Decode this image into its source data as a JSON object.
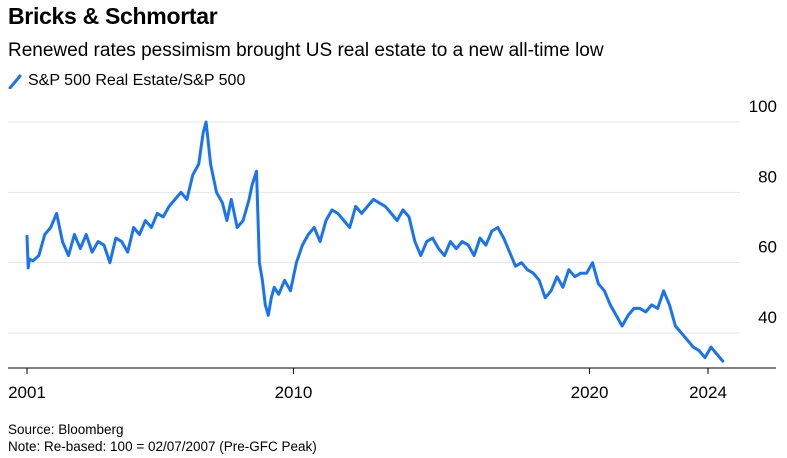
{
  "title": "Bricks & Schmortar",
  "subtitle": "Renewed rates pessimism brought US real estate to a new all-time low",
  "source": "Source: Bloomberg",
  "note": "Note: Re-based: 100 = 02/07/2007 (Pre-GFC Peak)",
  "colors": {
    "line": "#1a73f0",
    "grid": "#e6e6e6",
    "axis": "#000000"
  },
  "chart_data": {
    "type": "line",
    "title": "Bricks & Schmortar",
    "subtitle": "Renewed rates pessimism brought US real estate to a new all-time low",
    "legend_position": "top-left",
    "grid": true,
    "y_axis_side": "right",
    "ylim": [
      28,
      100
    ],
    "xlim": [
      2001,
      2024.6
    ],
    "y_ticks": [
      100,
      80,
      60,
      40
    ],
    "x_ticks": [
      2001,
      2010,
      2020,
      2024
    ],
    "series": [
      {
        "name": "S&P 500 Real Estate/S&P 500",
        "x": [
          2001.0,
          2001.04,
          2001.08,
          2001.2,
          2001.4,
          2001.6,
          2001.8,
          2002.0,
          2002.2,
          2002.4,
          2002.6,
          2002.8,
          2003.0,
          2003.2,
          2003.4,
          2003.6,
          2003.8,
          2004.0,
          2004.2,
          2004.4,
          2004.6,
          2004.8,
          2005.0,
          2005.2,
          2005.4,
          2005.6,
          2005.8,
          2006.0,
          2006.2,
          2006.4,
          2006.6,
          2006.8,
          2006.95,
          2007.05,
          2007.2,
          2007.4,
          2007.6,
          2007.75,
          2007.9,
          2008.1,
          2008.3,
          2008.5,
          2008.6,
          2008.75,
          2008.85,
          2008.95,
          2009.05,
          2009.15,
          2009.25,
          2009.35,
          2009.5,
          2009.7,
          2009.9,
          2010.1,
          2010.3,
          2010.5,
          2010.7,
          2010.9,
          2011.1,
          2011.3,
          2011.5,
          2011.7,
          2011.9,
          2012.1,
          2012.3,
          2012.5,
          2012.7,
          2012.9,
          2013.1,
          2013.3,
          2013.5,
          2013.7,
          2013.9,
          2014.1,
          2014.3,
          2014.5,
          2014.7,
          2014.9,
          2015.1,
          2015.3,
          2015.5,
          2015.7,
          2015.9,
          2016.1,
          2016.3,
          2016.5,
          2016.7,
          2016.9,
          2017.1,
          2017.3,
          2017.5,
          2017.7,
          2017.9,
          2018.1,
          2018.3,
          2018.5,
          2018.7,
          2018.9,
          2019.1,
          2019.3,
          2019.5,
          2019.7,
          2019.9,
          2020.1,
          2020.3,
          2020.5,
          2020.7,
          2020.9,
          2021.1,
          2021.3,
          2021.5,
          2021.7,
          2021.9,
          2022.1,
          2022.3,
          2022.5,
          2022.7,
          2022.9,
          2023.1,
          2023.3,
          2023.5,
          2023.7,
          2023.9,
          2024.1,
          2024.3,
          2024.5
        ],
        "values": [
          67.5,
          58.5,
          61,
          60.5,
          62,
          68,
          70,
          74,
          66,
          62,
          68,
          64,
          68,
          63,
          66,
          65,
          60,
          67,
          66,
          63,
          70,
          68,
          72,
          70,
          74,
          73,
          76,
          78,
          80,
          78,
          85,
          88,
          97,
          100,
          88,
          80,
          77,
          72,
          78,
          70,
          72,
          78,
          82,
          86,
          60,
          55,
          48,
          45,
          50,
          53,
          51,
          55,
          52,
          60,
          65,
          68,
          70,
          66,
          72,
          75,
          74,
          72,
          70,
          76,
          74,
          76,
          78,
          77,
          76,
          74,
          72,
          75,
          73,
          66,
          62,
          66,
          67,
          64,
          62,
          66,
          64,
          66,
          65,
          62,
          67,
          65,
          69,
          70,
          67,
          63,
          59,
          60,
          58,
          57,
          55,
          50,
          52,
          56,
          53,
          58,
          56,
          57,
          57,
          60,
          54,
          52,
          48,
          45,
          42,
          45,
          47,
          47,
          46,
          48,
          47,
          52,
          48,
          42,
          40,
          38,
          36,
          35,
          33,
          36,
          34,
          32
        ]
      }
    ]
  }
}
